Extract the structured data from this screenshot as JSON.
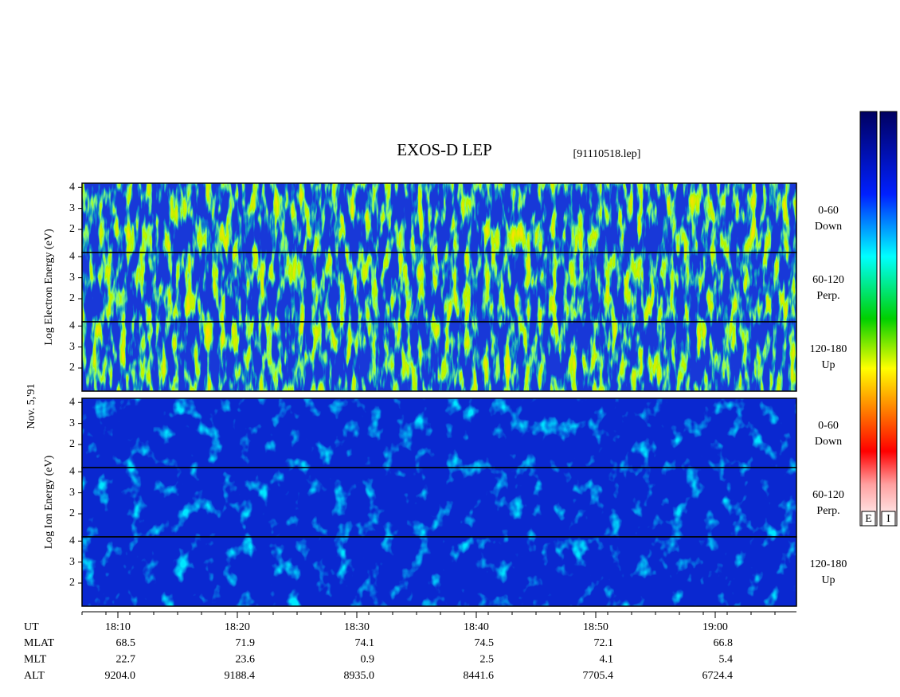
{
  "chart_data": {
    "type": "spectrogram",
    "title": "EXOS-D LEP",
    "subtitle": "[91110518.lep]",
    "date_label": "Nov. 5,'91",
    "xlabel": "UT",
    "xlim": [
      1087,
      1146.8
    ],
    "xticks": [
      {
        "value": 1090,
        "label": "18:10"
      },
      {
        "value": 1100,
        "label": "18:20"
      },
      {
        "value": 1110,
        "label": "18:30"
      },
      {
        "value": 1120,
        "label": "18:40"
      },
      {
        "value": 1130,
        "label": "18:50"
      },
      {
        "value": 1140,
        "label": "19:00"
      }
    ],
    "ylim": [
      0.9,
      4.2
    ],
    "yticks": [
      2,
      3,
      4
    ],
    "groups": [
      {
        "ylabel": "Log Electron Energy (eV)",
        "colorbar": "E",
        "panels": [
          {
            "range": "0-60",
            "direction": "Down"
          },
          {
            "range": "60-120",
            "direction": "Perp."
          },
          {
            "range": "120-180",
            "direction": "Up"
          }
        ]
      },
      {
        "ylabel": "Log Ion Energy (eV)",
        "colorbar": "I",
        "panels": [
          {
            "range": "0-60",
            "direction": "Down"
          },
          {
            "range": "60-120",
            "direction": "Perp."
          },
          {
            "range": "120-180",
            "direction": "Up"
          }
        ]
      }
    ],
    "orbit": [
      {
        "label": "MLAT",
        "values": [
          "68.5",
          "71.9",
          "74.1",
          "74.5",
          "72.1",
          "66.8"
        ]
      },
      {
        "label": "MLT",
        "values": [
          "22.7",
          "23.6",
          "0.9",
          "2.5",
          "4.1",
          "5.4"
        ]
      },
      {
        "label": "ALT",
        "values": [
          "9204.0",
          "9188.4",
          "8935.0",
          "8441.6",
          "7705.4",
          "6724.4"
        ]
      }
    ]
  }
}
